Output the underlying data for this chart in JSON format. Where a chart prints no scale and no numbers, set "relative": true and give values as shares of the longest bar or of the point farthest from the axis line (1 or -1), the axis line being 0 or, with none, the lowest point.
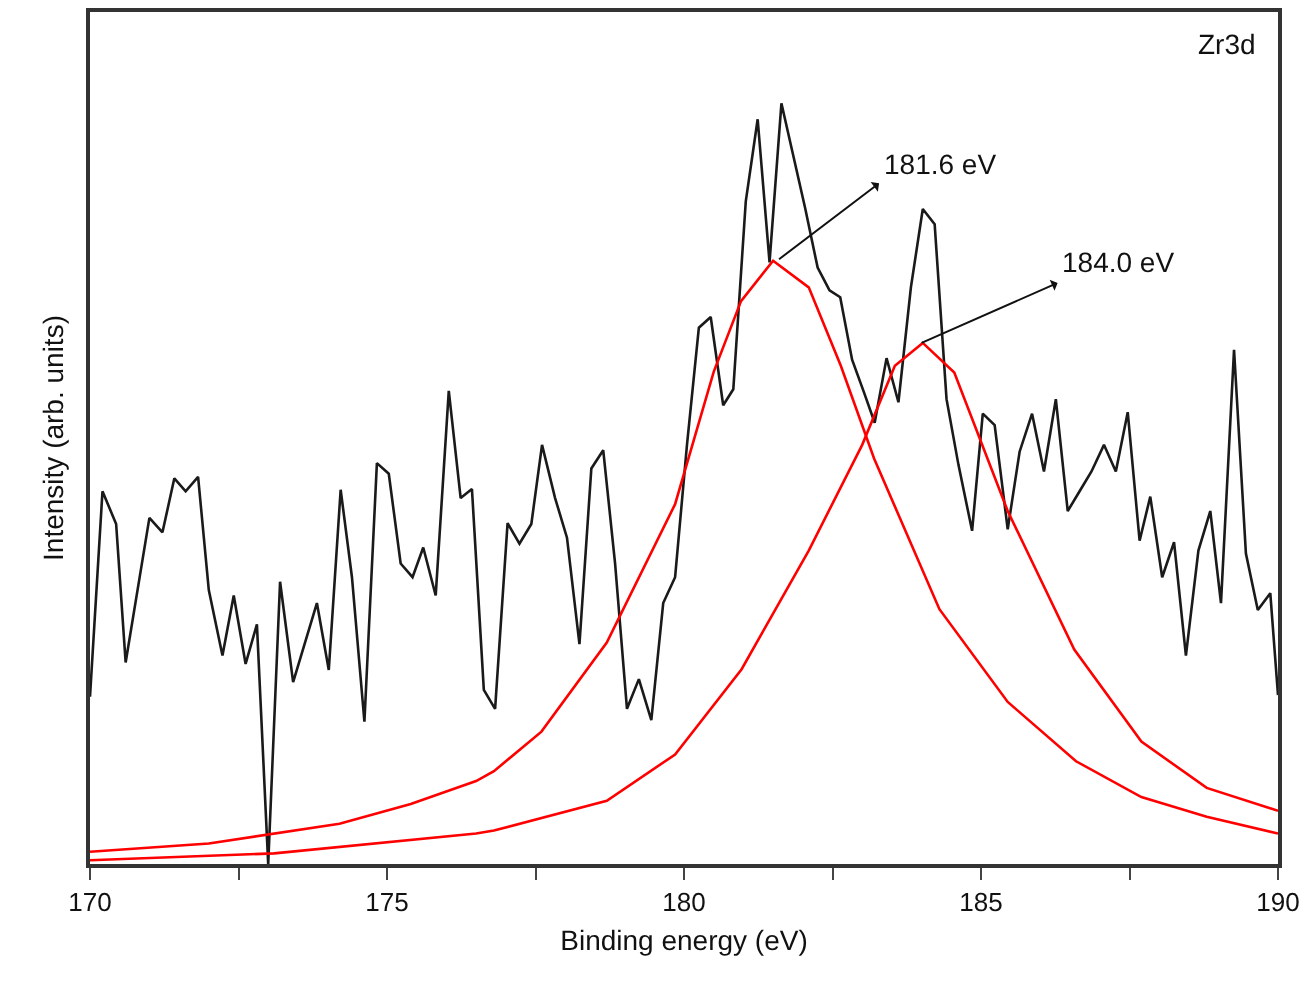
{
  "chart_data": {
    "type": "line",
    "relative": true,
    "xlabel": "Binding energy (eV)",
    "ylabel": "Intensity (arb. units)",
    "xlim": [
      170,
      190
    ],
    "xticks": [
      170,
      {
        "value": 172.5,
        "label": null
      },
      175,
      {
        "value": 177.5,
        "label": null
      },
      180,
      {
        "value": 182.5,
        "label": null
      },
      185,
      {
        "value": 187.5,
        "label": null
      },
      190
    ],
    "line_style": "solid",
    "annotations": [
      {
        "text": "181.6 eV",
        "x": 181.6,
        "y": 0.795
      },
      {
        "text": "184.0 eV",
        "x": 184.0,
        "y": 0.685
      },
      "Zr3d"
    ],
    "series": [
      {
        "color": "#1a1a1a",
        "x": [
          170.0,
          170.21,
          170.44,
          170.6,
          171.0,
          171.22,
          171.42,
          171.61,
          171.82,
          172.0,
          172.23,
          172.42,
          172.62,
          172.81,
          173.0,
          173.2,
          173.42,
          173.82,
          174.02,
          174.22,
          174.41,
          174.62,
          174.83,
          175.03,
          175.23,
          175.43,
          175.61,
          175.82,
          176.04,
          176.24,
          176.43,
          176.63,
          176.82,
          177.03,
          177.23,
          177.43,
          177.61,
          177.83,
          178.03,
          178.24,
          178.44,
          178.64,
          178.84,
          179.04,
          179.24,
          179.45,
          179.65,
          179.85,
          180.05,
          180.25,
          180.45,
          180.66,
          180.83,
          181.04,
          181.24,
          181.44,
          181.64,
          181.84,
          182.04,
          182.25,
          182.45,
          182.63,
          182.83,
          183.03,
          183.21,
          183.41,
          183.61,
          183.82,
          184.02,
          184.22,
          184.42,
          184.62,
          184.85,
          185.03,
          185.23,
          185.45,
          185.65,
          185.86,
          186.06,
          186.26,
          186.46,
          186.66,
          186.86,
          187.07,
          187.27,
          187.47,
          187.67,
          187.85,
          188.05,
          188.25,
          188.45,
          188.66,
          188.86,
          189.04,
          189.26,
          189.46,
          189.66,
          189.87,
          190.0
        ],
        "values": [
          0.22,
          0.49,
          0.447,
          0.265,
          0.455,
          0.436,
          0.507,
          0.49,
          0.509,
          0.36,
          0.274,
          0.353,
          0.263,
          0.315,
          0.0,
          0.371,
          0.239,
          0.343,
          0.255,
          0.492,
          0.377,
          0.187,
          0.527,
          0.513,
          0.395,
          0.377,
          0.416,
          0.353,
          0.622,
          0.481,
          0.493,
          0.229,
          0.204,
          0.448,
          0.421,
          0.447,
          0.551,
          0.481,
          0.429,
          0.289,
          0.52,
          0.544,
          0.395,
          0.204,
          0.243,
          0.189,
          0.343,
          0.377,
          0.551,
          0.705,
          0.719,
          0.603,
          0.624,
          0.871,
          0.979,
          0.791,
          1.0,
          0.931,
          0.862,
          0.784,
          0.754,
          0.745,
          0.663,
          0.62,
          0.58,
          0.665,
          0.607,
          0.758,
          0.861,
          0.841,
          0.611,
          0.525,
          0.438,
          0.592,
          0.577,
          0.44,
          0.542,
          0.592,
          0.516,
          0.611,
          0.464,
          0.49,
          0.516,
          0.551,
          0.516,
          0.594,
          0.425,
          0.483,
          0.377,
          0.423,
          0.274,
          0.412,
          0.464,
          0.343,
          0.676,
          0.408,
          0.334,
          0.356,
          0.222
        ]
      },
      {
        "color": "#ff0000",
        "x": [
          170.0,
          172.0,
          174.2,
          175.4,
          176.5,
          176.8,
          177.6,
          178.7,
          179.85,
          180.5,
          180.96,
          181.5,
          182.1,
          182.64,
          183.2,
          184.3,
          185.45,
          186.6,
          187.7,
          188.8,
          190.0
        ],
        "values": [
          0.016,
          0.027,
          0.053,
          0.079,
          0.109,
          0.122,
          0.174,
          0.291,
          0.473,
          0.647,
          0.74,
          0.793,
          0.758,
          0.655,
          0.533,
          0.335,
          0.213,
          0.135,
          0.088,
          0.062,
          0.04
        ]
      },
      {
        "color": "#ff0000",
        "x": [
          170.0,
          173.1,
          176.5,
          176.8,
          178.7,
          179.85,
          180.97,
          182.1,
          183.0,
          183.55,
          184.02,
          184.55,
          185.45,
          186.57,
          187.7,
          188.8,
          190.0
        ],
        "values": [
          0.005,
          0.014,
          0.04,
          0.044,
          0.083,
          0.144,
          0.256,
          0.412,
          0.551,
          0.655,
          0.685,
          0.646,
          0.464,
          0.282,
          0.161,
          0.1,
          0.07
        ]
      }
    ]
  }
}
